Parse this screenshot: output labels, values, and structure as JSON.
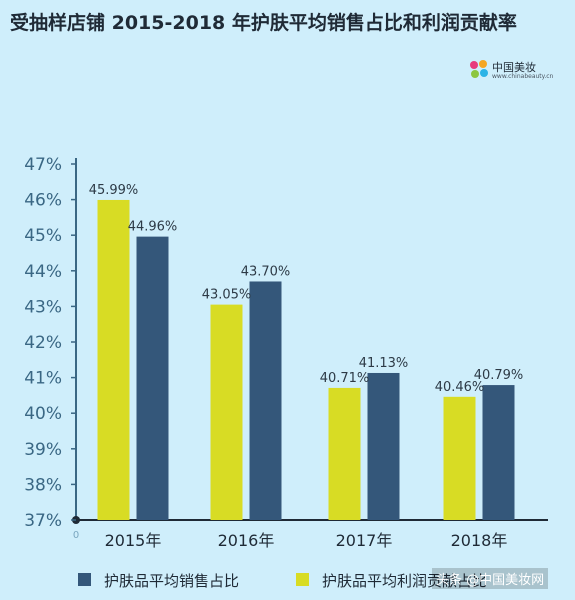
{
  "header": {
    "title": "受抽样店铺 2015-2018 年护肤平均销售占比和利润贡献率",
    "logo_text": "中国美妆",
    "logo_sub": "www.chinabeauty.cn"
  },
  "watermark": "头条 @中国美妆网",
  "colors": {
    "background": "#cfeefb",
    "sales": "#34577a",
    "profit": "#d8dc24",
    "axis": "#1f2a36",
    "tick": "#3a6784"
  },
  "chart_data": {
    "type": "bar",
    "categories": [
      "2015年",
      "2016年",
      "2017年",
      "2018年"
    ],
    "series": [
      {
        "name": "护肤品平均销售占比",
        "values": [
          44.96,
          43.7,
          41.13,
          40.79
        ]
      },
      {
        "name": "护肤品平均利润贡献占比",
        "values": [
          45.99,
          43.05,
          40.71,
          40.46
        ]
      }
    ],
    "data_labels": {
      "sales": [
        "44.96%",
        "43.70%",
        "41.13%",
        "40.79%"
      ],
      "profit": [
        "45.99%",
        "43.05%",
        "40.71%",
        "40.46%"
      ]
    },
    "yticks": [
      "37%",
      "38%",
      "39%",
      "40%",
      "41%",
      "42%",
      "43%",
      "44%",
      "45%",
      "46%",
      "47%"
    ],
    "ylim": [
      37,
      47
    ],
    "grid": false,
    "legend_position": "bottom",
    "x_origin_label": "0"
  }
}
